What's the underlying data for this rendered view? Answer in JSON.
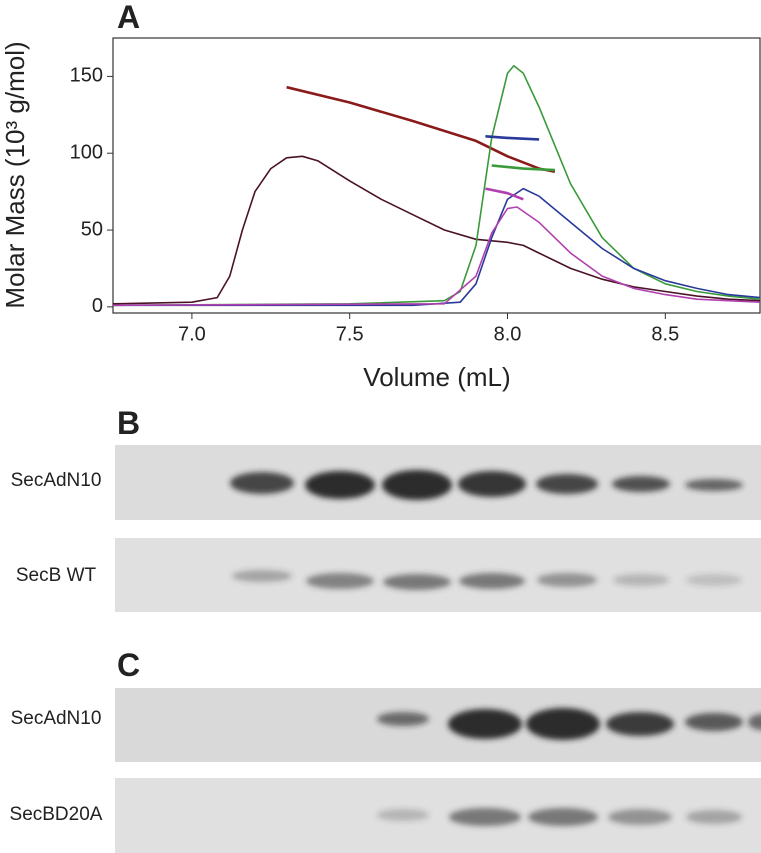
{
  "chart_data": {
    "type": "line",
    "panel_label": "A",
    "xlabel": "Volume (mL)",
    "ylabel": "Molar Mass (10³ g/mol)",
    "xlim": [
      6.75,
      8.8
    ],
    "xticks": [
      {
        "value": 7,
        "label": "7.0"
      },
      7.5,
      {
        "value": 8,
        "label": "8.0"
      },
      8.5
    ],
    "ylim": [
      -4,
      175
    ],
    "yticks": [
      0,
      50,
      100,
      150
    ],
    "series": [
      {
        "color": "#4a1226",
        "x": [
          6.75,
          7.0,
          7.08,
          7.12,
          7.16,
          7.2,
          7.25,
          7.3,
          7.35,
          7.4,
          7.5,
          7.6,
          7.7,
          7.8,
          7.9,
          8.0,
          8.05,
          8.1,
          8.2,
          8.3,
          8.4,
          8.5,
          8.6,
          8.7,
          8.8
        ],
        "values": [
          2,
          3,
          6,
          20,
          50,
          75,
          90,
          97,
          98,
          95,
          82,
          70,
          60,
          50,
          44,
          42,
          40,
          35,
          25,
          18,
          13,
          10,
          7,
          5,
          4
        ]
      },
      {
        "color": "#8b1a1a",
        "x": [
          7.3,
          7.5,
          7.7,
          7.9,
          8.0,
          8.1,
          8.15
        ],
        "values": [
          143,
          133,
          121,
          108,
          98,
          90,
          88
        ]
      },
      {
        "color": "#3a9a3a",
        "x": [
          6.75,
          7.5,
          7.8,
          7.85,
          7.9,
          7.95,
          8.0,
          8.02,
          8.05,
          8.1,
          8.2,
          8.3,
          8.4,
          8.5,
          8.6,
          8.7,
          8.8
        ],
        "values": [
          1,
          2,
          4,
          10,
          40,
          110,
          152,
          157,
          152,
          130,
          80,
          45,
          25,
          15,
          10,
          7,
          5
        ]
      },
      {
        "color": "#3a9a3a",
        "x": [
          7.95,
          8.05,
          8.15
        ],
        "values": [
          92,
          90,
          89
        ]
      },
      {
        "color": "#2a3a9a",
        "x": [
          6.75,
          7.7,
          7.85,
          7.9,
          7.95,
          8.0,
          8.05,
          8.1,
          8.2,
          8.3,
          8.4,
          8.5,
          8.6,
          8.7,
          8.8
        ],
        "values": [
          1,
          1,
          3,
          15,
          45,
          70,
          77,
          72,
          55,
          38,
          25,
          17,
          12,
          8,
          6
        ]
      },
      {
        "color": "#2a3a9a",
        "x": [
          7.93,
          8.0,
          8.1
        ],
        "values": [
          111,
          110,
          109
        ]
      },
      {
        "color": "#b040b0",
        "x": [
          6.75,
          7.8,
          7.9,
          7.95,
          8.0,
          8.03,
          8.1,
          8.2,
          8.3,
          8.4,
          8.5,
          8.6,
          8.7,
          8.8
        ],
        "values": [
          1,
          2,
          20,
          48,
          64,
          65,
          55,
          35,
          20,
          12,
          8,
          5,
          4,
          3
        ]
      },
      {
        "color": "#b040b0",
        "x": [
          7.93,
          8.0,
          8.05
        ],
        "values": [
          77,
          74,
          70
        ]
      }
    ]
  },
  "gels": {
    "B": {
      "label": "B",
      "lanes": [
        "SecAdN10",
        "SecB WT"
      ]
    },
    "C": {
      "label": "C",
      "lanes": [
        "SecAdN10",
        "SecBD20A"
      ]
    }
  }
}
